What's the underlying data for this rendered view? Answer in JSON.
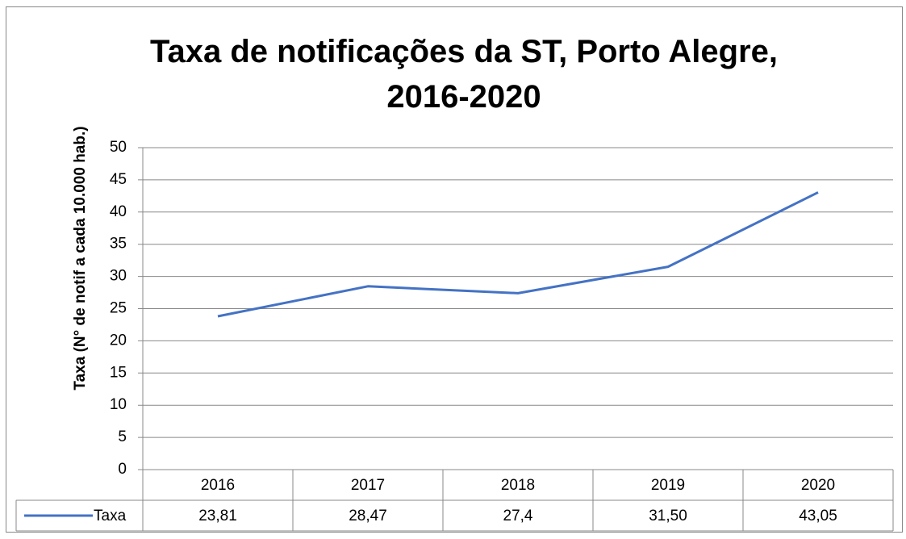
{
  "chart_data": {
    "type": "line",
    "title": "Taxa de notificações da ST, Porto Alegre, 2016-2020",
    "y_label": "Taxa (N° de notif a cada 10.000 hab.)",
    "categories": [
      "2016",
      "2017",
      "2018",
      "2019",
      "2020"
    ],
    "series": [
      {
        "name": "Taxa",
        "color": "#4472c4",
        "values": [
          23.81,
          28.47,
          27.4,
          31.5,
          43.05
        ],
        "value_labels": [
          "23,81",
          "28,47",
          "27,4",
          "31,50",
          "43,05"
        ]
      }
    ],
    "ylim": [
      0,
      50
    ],
    "yticks": [
      0,
      5,
      10,
      15,
      20,
      25,
      30,
      35,
      40,
      45,
      50
    ],
    "grid": true,
    "data_table": true
  }
}
